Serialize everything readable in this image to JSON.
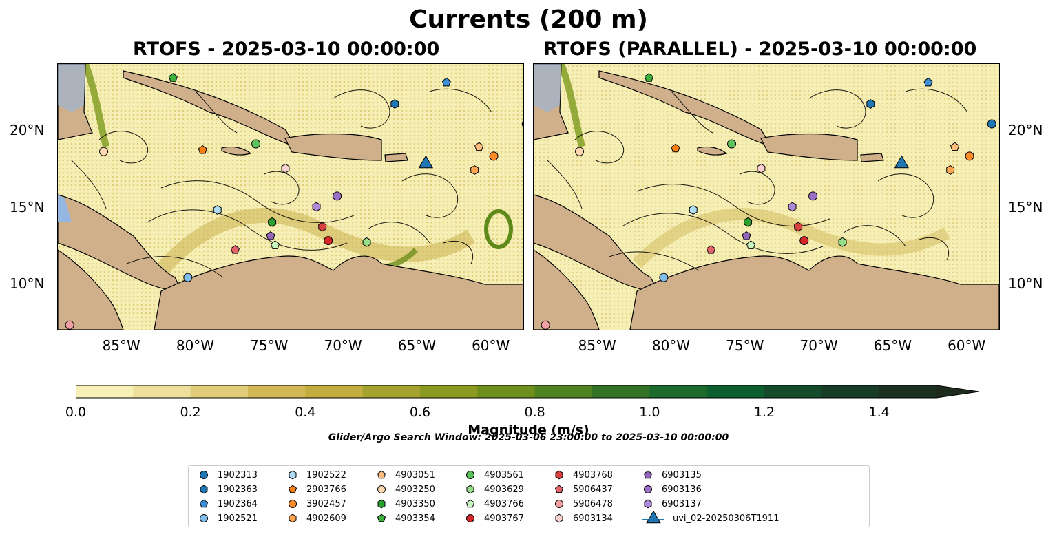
{
  "figure": {
    "title": "Currents (200 m)"
  },
  "panels": [
    {
      "title": "RTOFS - 2025-03-10 00:00:00"
    },
    {
      "title": "RTOFS (PARALLEL) - 2025-03-10 00:00:00"
    }
  ],
  "axes": {
    "x_ticks": [
      "85°W",
      "80°W",
      "75°W",
      "70°W",
      "65°W",
      "60°W"
    ],
    "y_ticks": [
      "20°N",
      "15°N",
      "10°N"
    ]
  },
  "colorbar": {
    "label": "Magnitude (m/s)",
    "ticks": [
      "0.0",
      "0.2",
      "0.4",
      "0.6",
      "0.8",
      "1.0",
      "1.2",
      "1.4"
    ],
    "colors": [
      "#f7f1b8",
      "#ede09d",
      "#e1cc79",
      "#d2b955",
      "#c2ad3e",
      "#a5a22e",
      "#8b9b1f",
      "#6f8f1d",
      "#4f8322",
      "#327326",
      "#1c6a2c",
      "#0d5f2f",
      "#134b2b",
      "#173d27",
      "#1b3020",
      "#1c2b1c"
    ],
    "extend": "max"
  },
  "search_window": "Glider/Argo Search Window: 2025-03-06 23:00:00 to 2025-03-10 00:00:00",
  "legend": [
    {
      "id": "1902313",
      "marker": "circle",
      "color": "#1f77b4"
    },
    {
      "id": "1902363",
      "marker": "hexagon",
      "color": "#1f77b4"
    },
    {
      "id": "1902364",
      "marker": "pentagon",
      "color": "#3f8fd4"
    },
    {
      "id": "1902521",
      "marker": "circle",
      "color": "#7fbfea"
    },
    {
      "id": "1902522",
      "marker": "hexagon",
      "color": "#aedcf5"
    },
    {
      "id": "2903766",
      "marker": "pentagon",
      "color": "#ff7f0e"
    },
    {
      "id": "3902457",
      "marker": "circle",
      "color": "#ff8c2a"
    },
    {
      "id": "4902609",
      "marker": "hexagon",
      "color": "#ffa552"
    },
    {
      "id": "4903051",
      "marker": "pentagon",
      "color": "#ffbe7d"
    },
    {
      "id": "4903250",
      "marker": "circle",
      "color": "#ffd7b0"
    },
    {
      "id": "4903350",
      "marker": "hexagon",
      "color": "#2ca02c"
    },
    {
      "id": "4903354",
      "marker": "pentagon",
      "color": "#3cb03c"
    },
    {
      "id": "4903561",
      "marker": "circle",
      "color": "#5cc05c"
    },
    {
      "id": "4903629",
      "marker": "hexagon",
      "color": "#98df8a"
    },
    {
      "id": "4903766",
      "marker": "pentagon",
      "color": "#c8f5c0"
    },
    {
      "id": "4903767",
      "marker": "circle",
      "color": "#d62728"
    },
    {
      "id": "4903768",
      "marker": "hexagon",
      "color": "#d94040"
    },
    {
      "id": "5906437",
      "marker": "pentagon",
      "color": "#e0656a"
    },
    {
      "id": "5906478",
      "marker": "circle",
      "color": "#f0a0a0"
    },
    {
      "id": "6903134",
      "marker": "hexagon",
      "color": "#fbd0d0"
    },
    {
      "id": "6903135",
      "marker": "pentagon",
      "color": "#9467bd"
    },
    {
      "id": "6903136",
      "marker": "circle",
      "color": "#9a70c8"
    },
    {
      "id": "6903137",
      "marker": "hexagon",
      "color": "#b08ad8"
    },
    {
      "id": "uvi_02-20250306T1911",
      "marker": "triangle",
      "color": "#1f77b4"
    }
  ],
  "floats_panel1": [
    {
      "id": "1902313",
      "lon": -57.8,
      "lat": 20.5
    },
    {
      "id": "1902363",
      "lon": -66.7,
      "lat": 21.8
    },
    {
      "id": "1902364",
      "lon": -63.2,
      "lat": 23.2
    },
    {
      "id": "1902521",
      "lon": -80.7,
      "lat": 10.5
    },
    {
      "id": "1902522",
      "lon": -78.7,
      "lat": 14.9
    },
    {
      "id": "2903766",
      "lon": -79.7,
      "lat": 18.8
    },
    {
      "id": "3902457",
      "lon": -60.0,
      "lat": 18.4
    },
    {
      "id": "4902609",
      "lon": -61.3,
      "lat": 17.5
    },
    {
      "id": "4903051",
      "lon": -61.0,
      "lat": 19.0
    },
    {
      "id": "4903250",
      "lon": -86.4,
      "lat": 18.7
    },
    {
      "id": "4903350",
      "lon": -75.0,
      "lat": 14.1
    },
    {
      "id": "4903354",
      "lon": -81.7,
      "lat": 23.5
    },
    {
      "id": "4903561",
      "lon": -76.1,
      "lat": 19.2
    },
    {
      "id": "4903629",
      "lon": -68.6,
      "lat": 12.8
    },
    {
      "id": "4903766",
      "lon": -74.8,
      "lat": 12.6
    },
    {
      "id": "4903767",
      "lon": -71.2,
      "lat": 12.9
    },
    {
      "id": "4903768",
      "lon": -71.6,
      "lat": 13.8
    },
    {
      "id": "5906437",
      "lon": -77.5,
      "lat": 12.3
    },
    {
      "id": "5906478",
      "lon": -88.7,
      "lat": 7.4
    },
    {
      "id": "6903134",
      "lon": -74.1,
      "lat": 17.6
    },
    {
      "id": "6903135",
      "lon": -75.1,
      "lat": 13.2
    },
    {
      "id": "6903136",
      "lon": -70.6,
      "lat": 15.8
    },
    {
      "id": "6903137",
      "lon": -72.0,
      "lat": 15.1
    },
    {
      "id": "uvi_02-20250306T1911",
      "lon": -64.6,
      "lat": 17.9
    }
  ],
  "floats_panel2": [
    {
      "id": "1902313",
      "lon": -58.5,
      "lat": 20.5
    },
    {
      "id": "1902363",
      "lon": -66.7,
      "lat": 21.8
    },
    {
      "id": "1902364",
      "lon": -62.8,
      "lat": 23.2
    },
    {
      "id": "1902521",
      "lon": -80.7,
      "lat": 10.5
    },
    {
      "id": "1902522",
      "lon": -78.7,
      "lat": 14.9
    },
    {
      "id": "2903766",
      "lon": -79.9,
      "lat": 18.9
    },
    {
      "id": "3902457",
      "lon": -60.0,
      "lat": 18.4
    },
    {
      "id": "4902609",
      "lon": -61.3,
      "lat": 17.5
    },
    {
      "id": "4903051",
      "lon": -61.0,
      "lat": 19.0
    },
    {
      "id": "4903250",
      "lon": -86.4,
      "lat": 18.7
    },
    {
      "id": "4903350",
      "lon": -75.0,
      "lat": 14.1
    },
    {
      "id": "4903354",
      "lon": -81.7,
      "lat": 23.5
    },
    {
      "id": "4903561",
      "lon": -76.1,
      "lat": 19.2
    },
    {
      "id": "4903629",
      "lon": -68.6,
      "lat": 12.8
    },
    {
      "id": "4903766",
      "lon": -74.8,
      "lat": 12.6
    },
    {
      "id": "4903767",
      "lon": -71.2,
      "lat": 12.9
    },
    {
      "id": "4903768",
      "lon": -71.6,
      "lat": 13.8
    },
    {
      "id": "5906437",
      "lon": -77.5,
      "lat": 12.3
    },
    {
      "id": "5906478",
      "lon": -88.7,
      "lat": 7.4
    },
    {
      "id": "6903134",
      "lon": -74.1,
      "lat": 17.6
    },
    {
      "id": "6903135",
      "lon": -75.1,
      "lat": 13.2
    },
    {
      "id": "6903136",
      "lon": -70.6,
      "lat": 15.8
    },
    {
      "id": "6903137",
      "lon": -72.0,
      "lat": 15.1
    },
    {
      "id": "uvi_02-20250306T1911",
      "lon": -64.6,
      "lat": 17.9
    }
  ]
}
